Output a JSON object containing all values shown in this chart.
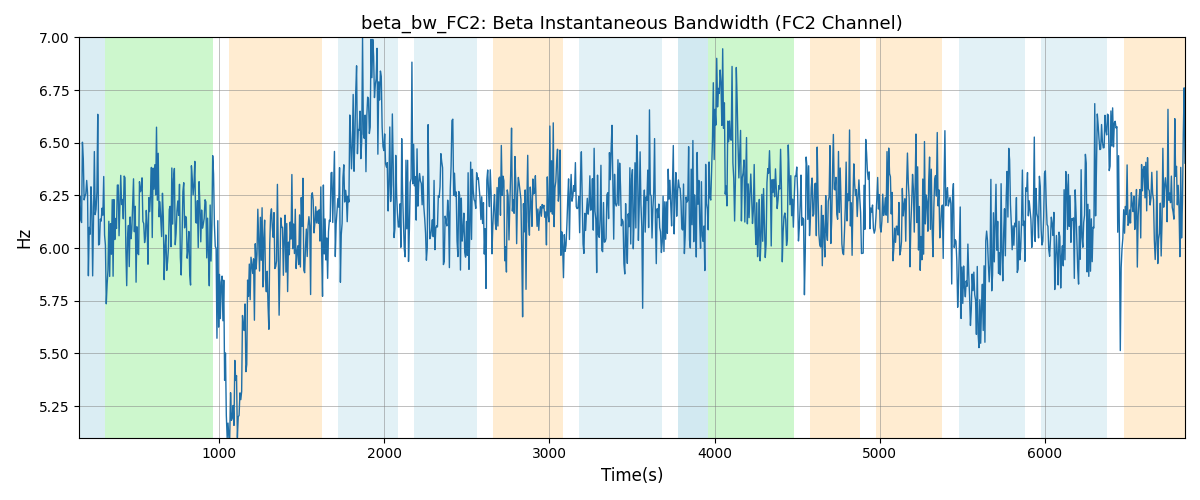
{
  "title": "beta_bw_FC2: Beta Instantaneous Bandwidth (FC2 Channel)",
  "xlabel": "Time(s)",
  "ylabel": "Hz",
  "ylim": [
    5.1,
    7.0
  ],
  "xlim": [
    150,
    6850
  ],
  "yticks": [
    5.25,
    5.5,
    5.75,
    6.0,
    6.25,
    6.5,
    6.75,
    7.0
  ],
  "xticks": [
    1000,
    2000,
    3000,
    4000,
    5000,
    6000
  ],
  "line_color": "#1f6fa8",
  "line_width": 1.0,
  "bg_bands": [
    {
      "xmin": 150,
      "xmax": 310,
      "color": "#add8e6",
      "alpha": 0.45
    },
    {
      "xmin": 310,
      "xmax": 960,
      "color": "#90ee90",
      "alpha": 0.45
    },
    {
      "xmin": 1060,
      "xmax": 1620,
      "color": "#ffd59a",
      "alpha": 0.45
    },
    {
      "xmin": 1720,
      "xmax": 2080,
      "color": "#add8e6",
      "alpha": 0.35
    },
    {
      "xmin": 2180,
      "xmax": 2560,
      "color": "#add8e6",
      "alpha": 0.35
    },
    {
      "xmin": 2660,
      "xmax": 3080,
      "color": "#ffd59a",
      "alpha": 0.45
    },
    {
      "xmin": 3180,
      "xmax": 3680,
      "color": "#add8e6",
      "alpha": 0.35
    },
    {
      "xmin": 3780,
      "xmax": 3960,
      "color": "#add8e6",
      "alpha": 0.55
    },
    {
      "xmin": 3960,
      "xmax": 4480,
      "color": "#90ee90",
      "alpha": 0.45
    },
    {
      "xmin": 4580,
      "xmax": 4880,
      "color": "#ffd59a",
      "alpha": 0.45
    },
    {
      "xmin": 4980,
      "xmax": 5380,
      "color": "#ffd59a",
      "alpha": 0.45
    },
    {
      "xmin": 5480,
      "xmax": 5880,
      "color": "#add8e6",
      "alpha": 0.35
    },
    {
      "xmin": 5980,
      "xmax": 6380,
      "color": "#add8e6",
      "alpha": 0.35
    },
    {
      "xmin": 6480,
      "xmax": 6850,
      "color": "#ffd59a",
      "alpha": 0.45
    }
  ],
  "seed": 12345,
  "n_points": 1300
}
